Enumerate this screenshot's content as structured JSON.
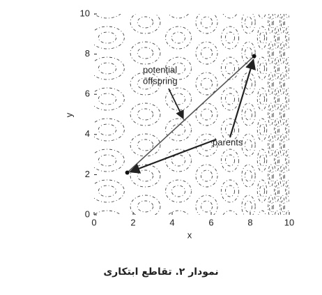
{
  "figure": {
    "xlabel": "x",
    "ylabel": "y",
    "xlim": [
      0,
      10
    ],
    "ylim": [
      0,
      10
    ],
    "xticks": [
      0,
      2,
      4,
      6,
      8,
      10
    ],
    "yticks": [
      0,
      2,
      4,
      6,
      8,
      10
    ],
    "points": [
      {
        "x": 1.7,
        "y": 2.1
      },
      {
        "x": 8.2,
        "y": 7.9
      }
    ],
    "offspring_label": [
      "potential",
      "offspring"
    ],
    "parents_label": "parents",
    "caption": "نمودار ۲. تقاطع ابتکاری"
  }
}
